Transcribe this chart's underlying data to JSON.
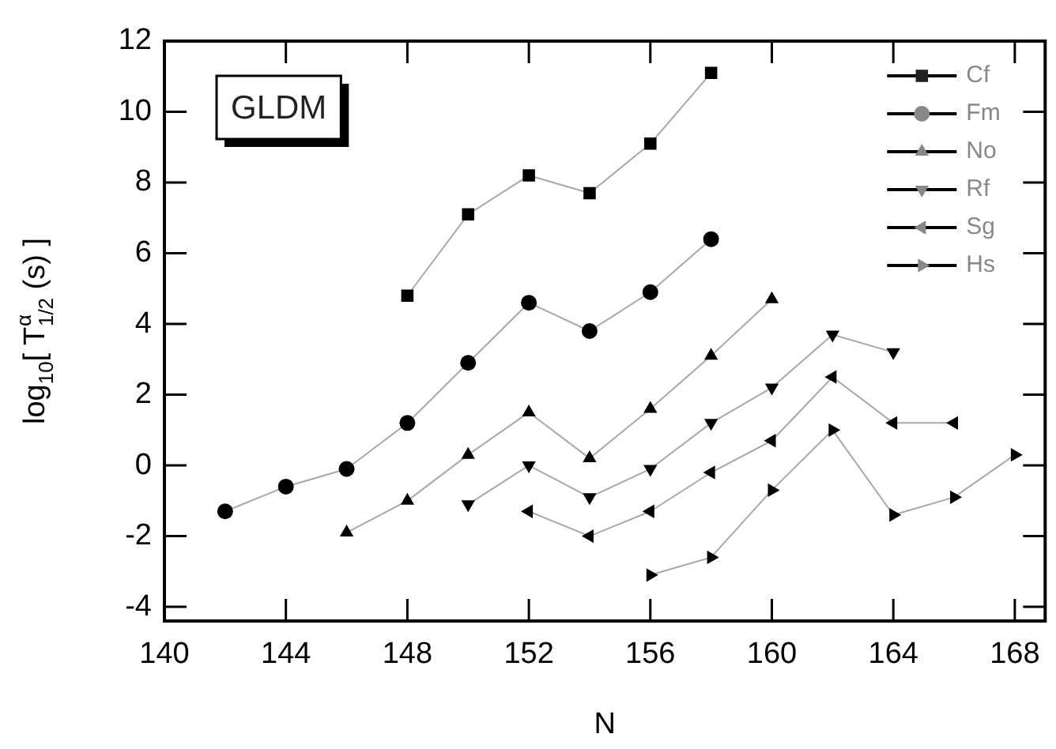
{
  "chart_data": {
    "type": "line",
    "xlabel": "N",
    "ylabel": "log$_{10}$[ T$^{α}$$_{1/2}$ (s) ]",
    "annotations": [
      "GLDM"
    ],
    "xlim": [
      140,
      169
    ],
    "xticks": [
      140,
      144,
      148,
      152,
      156,
      160,
      164,
      168
    ],
    "ylim": [
      -4.4,
      12
    ],
    "yticks": [
      -4,
      -2,
      0,
      2,
      4,
      6,
      8,
      10,
      12
    ],
    "grid": false,
    "legend": "top right",
    "line_style": "solid",
    "series": [
      {
        "name": "Cf",
        "color": "#000000",
        "marker": "square",
        "x": [
          148,
          150,
          152,
          154,
          156,
          158
        ],
        "values": [
          4.8,
          7.1,
          8.2,
          7.7,
          9.1,
          11.1
        ]
      },
      {
        "name": "Fm",
        "color": "#000000",
        "marker": "circle",
        "x": [
          142,
          144,
          146,
          148,
          150,
          152,
          154,
          156,
          158
        ],
        "values": [
          -1.3,
          -0.6,
          -0.1,
          1.2,
          2.9,
          4.6,
          3.8,
          4.9,
          6.4
        ]
      },
      {
        "name": "No",
        "color": "#000000",
        "marker": "triangle",
        "x": [
          146,
          148,
          150,
          152,
          154,
          156,
          158,
          160
        ],
        "values": [
          -1.9,
          -1.0,
          0.3,
          1.5,
          0.2,
          1.6,
          3.1,
          4.7
        ]
      },
      {
        "name": "Rf",
        "color": "#000000",
        "marker": "triangle-down",
        "x": [
          150,
          152,
          154,
          156,
          158,
          160,
          162,
          164
        ],
        "values": [
          -1.1,
          0.0,
          -0.9,
          -0.1,
          1.2,
          2.2,
          3.7,
          3.2
        ]
      },
      {
        "name": "Sg",
        "color": "#000000",
        "marker": "triangle-left",
        "x": [
          152,
          154,
          156,
          158,
          160,
          162,
          164,
          166
        ],
        "values": [
          -1.3,
          -2.0,
          -1.3,
          -0.2,
          0.7,
          2.5,
          1.2,
          1.2
        ]
      },
      {
        "name": "Hs",
        "color": "#000000",
        "marker": "triangle-right",
        "x": [
          156,
          158,
          160,
          162,
          164,
          166,
          168
        ],
        "values": [
          -3.1,
          -2.6,
          -0.7,
          1.0,
          -1.4,
          -0.9,
          0.3
        ]
      }
    ]
  }
}
